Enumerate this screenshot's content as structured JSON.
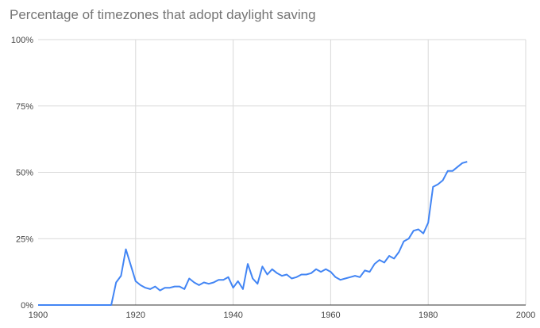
{
  "chart_data": {
    "type": "line",
    "title": "Percentage of timezones that adopt daylight saving",
    "xlabel": "",
    "ylabel": "",
    "xlim": [
      1900,
      2000
    ],
    "ylim": [
      0,
      100
    ],
    "x_ticks": [
      "1900",
      "1920",
      "1940",
      "1960",
      "1980",
      "2000"
    ],
    "y_ticks": [
      "0%",
      "25%",
      "50%",
      "75%",
      "100%"
    ],
    "grid": true,
    "legend": "none",
    "line_color": "#4285f4",
    "series": [
      {
        "x": [
          1900,
          1901,
          1902,
          1903,
          1904,
          1905,
          1906,
          1907,
          1908,
          1909,
          1910,
          1911,
          1912,
          1913,
          1914,
          1915,
          1916,
          1917,
          1918,
          1919,
          1920,
          1921,
          1922,
          1923,
          1924,
          1925,
          1926,
          1927,
          1928,
          1929,
          1930,
          1931,
          1932,
          1933,
          1934,
          1935,
          1936,
          1937,
          1938,
          1939,
          1940,
          1941,
          1942,
          1943,
          1944,
          1945,
          1946,
          1947,
          1948,
          1949,
          1950,
          1951,
          1952,
          1953,
          1954,
          1955,
          1956,
          1957,
          1958,
          1959,
          1960,
          1961,
          1962,
          1963,
          1964,
          1965,
          1966,
          1967,
          1968,
          1969,
          1970,
          1971,
          1972,
          1973,
          1974,
          1975,
          1976,
          1977,
          1978,
          1979,
          1980,
          1981,
          1982,
          1983,
          1984,
          1985,
          1986,
          1987,
          1988
        ],
        "values": [
          0,
          0,
          0,
          0,
          0,
          0,
          0,
          0,
          0,
          0,
          0,
          0,
          0,
          0,
          0,
          0,
          8.5,
          11,
          21,
          15,
          9,
          7.5,
          6.5,
          6,
          7,
          5.5,
          6.5,
          6.5,
          7,
          7,
          6,
          10,
          8.5,
          7.5,
          8.5,
          8,
          8.5,
          9.5,
          9.5,
          10.5,
          6.5,
          9,
          6,
          15.5,
          10,
          8,
          14.5,
          11.5,
          13.5,
          12,
          11,
          11.5,
          10,
          10.5,
          11.5,
          11.5,
          12,
          13.5,
          12.5,
          13.5,
          12.5,
          10.5,
          9.5,
          10,
          10.5,
          11,
          10.5,
          13,
          12.5,
          15.5,
          17,
          16,
          18.5,
          17.5,
          20,
          24,
          25,
          28,
          28.5,
          27,
          31,
          44.5,
          45.5,
          47,
          50.5,
          50.5,
          52,
          53.5,
          54
        ]
      }
    ]
  }
}
